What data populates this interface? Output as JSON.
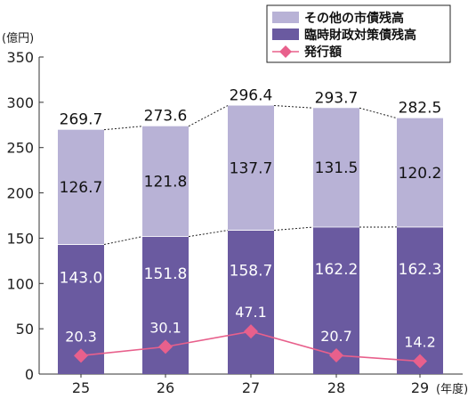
{
  "chart_data": {
    "type": "bar",
    "stacked": true,
    "ylabel": "(億円)",
    "xlabel_suffix": "(年度)",
    "ylim": [
      0,
      350
    ],
    "yticks": [
      0,
      50,
      100,
      150,
      200,
      250,
      300,
      350
    ],
    "categories": [
      "25",
      "26",
      "27",
      "28",
      "29"
    ],
    "series": [
      {
        "name": "臨時財政対策債残高",
        "kind": "bar",
        "color": "#6a5aa0",
        "label_color": "#ffffff",
        "values": [
          143.0,
          151.8,
          158.7,
          162.2,
          162.3
        ]
      },
      {
        "name": "その他の市債残高",
        "kind": "bar",
        "color": "#b8b2d6",
        "label_color": "#111111",
        "values": [
          126.7,
          121.8,
          137.7,
          131.5,
          120.2
        ]
      },
      {
        "name": "発行額",
        "kind": "line",
        "color": "#e8608c",
        "values": [
          20.3,
          30.1,
          47.1,
          20.7,
          14.2
        ]
      }
    ],
    "totals": [
      269.7,
      273.6,
      296.4,
      293.7,
      282.5
    ],
    "value_labels": {
      "bottom": [
        "143.0",
        "151.8",
        "158.7",
        "162.2",
        "162.3"
      ],
      "top": [
        "126.7",
        "121.8",
        "137.7",
        "131.5",
        "120.2"
      ],
      "totals": [
        "269.7",
        "273.6",
        "296.4",
        "293.7",
        "282.5"
      ],
      "issue": [
        "20.3",
        "30.1",
        "47.1",
        "20.7",
        "14.2"
      ]
    },
    "legend": {
      "position": "top-right",
      "items": [
        {
          "label": "その他の市債残高",
          "color": "#b8b2d6",
          "marker": "box"
        },
        {
          "label": "臨時財政対策債残高",
          "color": "#6a5aa0",
          "marker": "box"
        },
        {
          "label": "発行額",
          "color": "#e8608c",
          "marker": "diamond-line"
        }
      ]
    },
    "connector_lines": "dotted",
    "grid": false
  }
}
